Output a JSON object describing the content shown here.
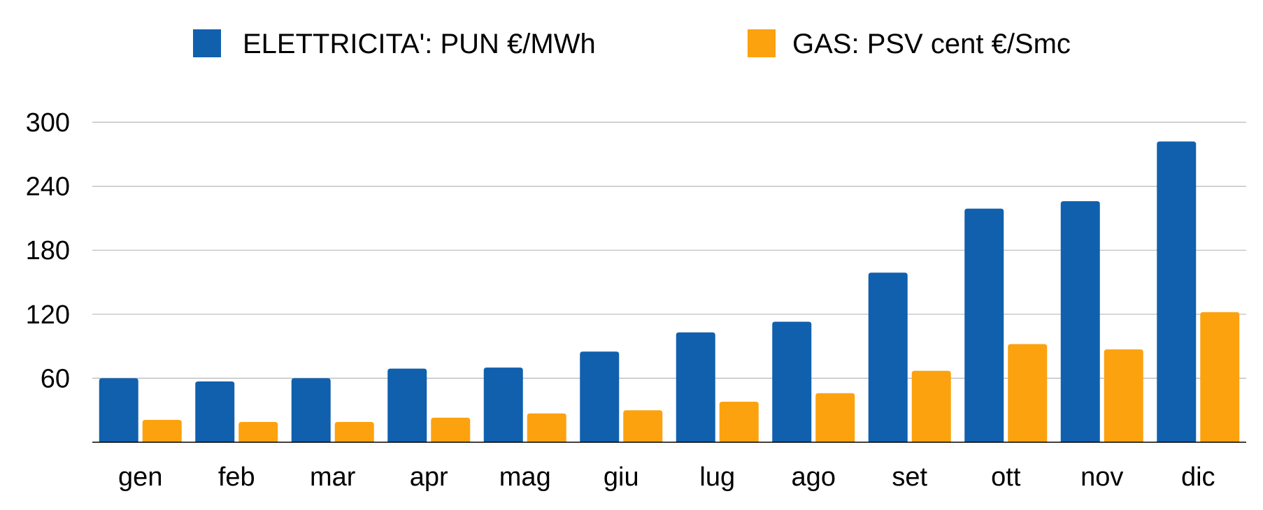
{
  "chart_data": {
    "type": "bar",
    "title": "",
    "xlabel": "",
    "ylabel": "",
    "categories": [
      "gen",
      "feb",
      "mar",
      "apr",
      "mag",
      "giu",
      "lug",
      "ago",
      "set",
      "ott",
      "nov",
      "dic"
    ],
    "series": [
      {
        "name": "ELETTRICITA': PUN €/MWh",
        "color": "#1060AE",
        "values": [
          60,
          57,
          60,
          69,
          70,
          85,
          103,
          113,
          159,
          219,
          226,
          282
        ]
      },
      {
        "name": "GAS: PSV cent €/Smc",
        "color": "#FCA20F",
        "values": [
          21,
          19,
          19,
          23,
          27,
          30,
          38,
          46,
          67,
          92,
          87,
          122
        ]
      }
    ],
    "ylim": [
      0,
      300
    ],
    "yticks": [
      "60",
      "120",
      "180",
      "240",
      "300"
    ],
    "grid": true,
    "legend_position": "top"
  }
}
